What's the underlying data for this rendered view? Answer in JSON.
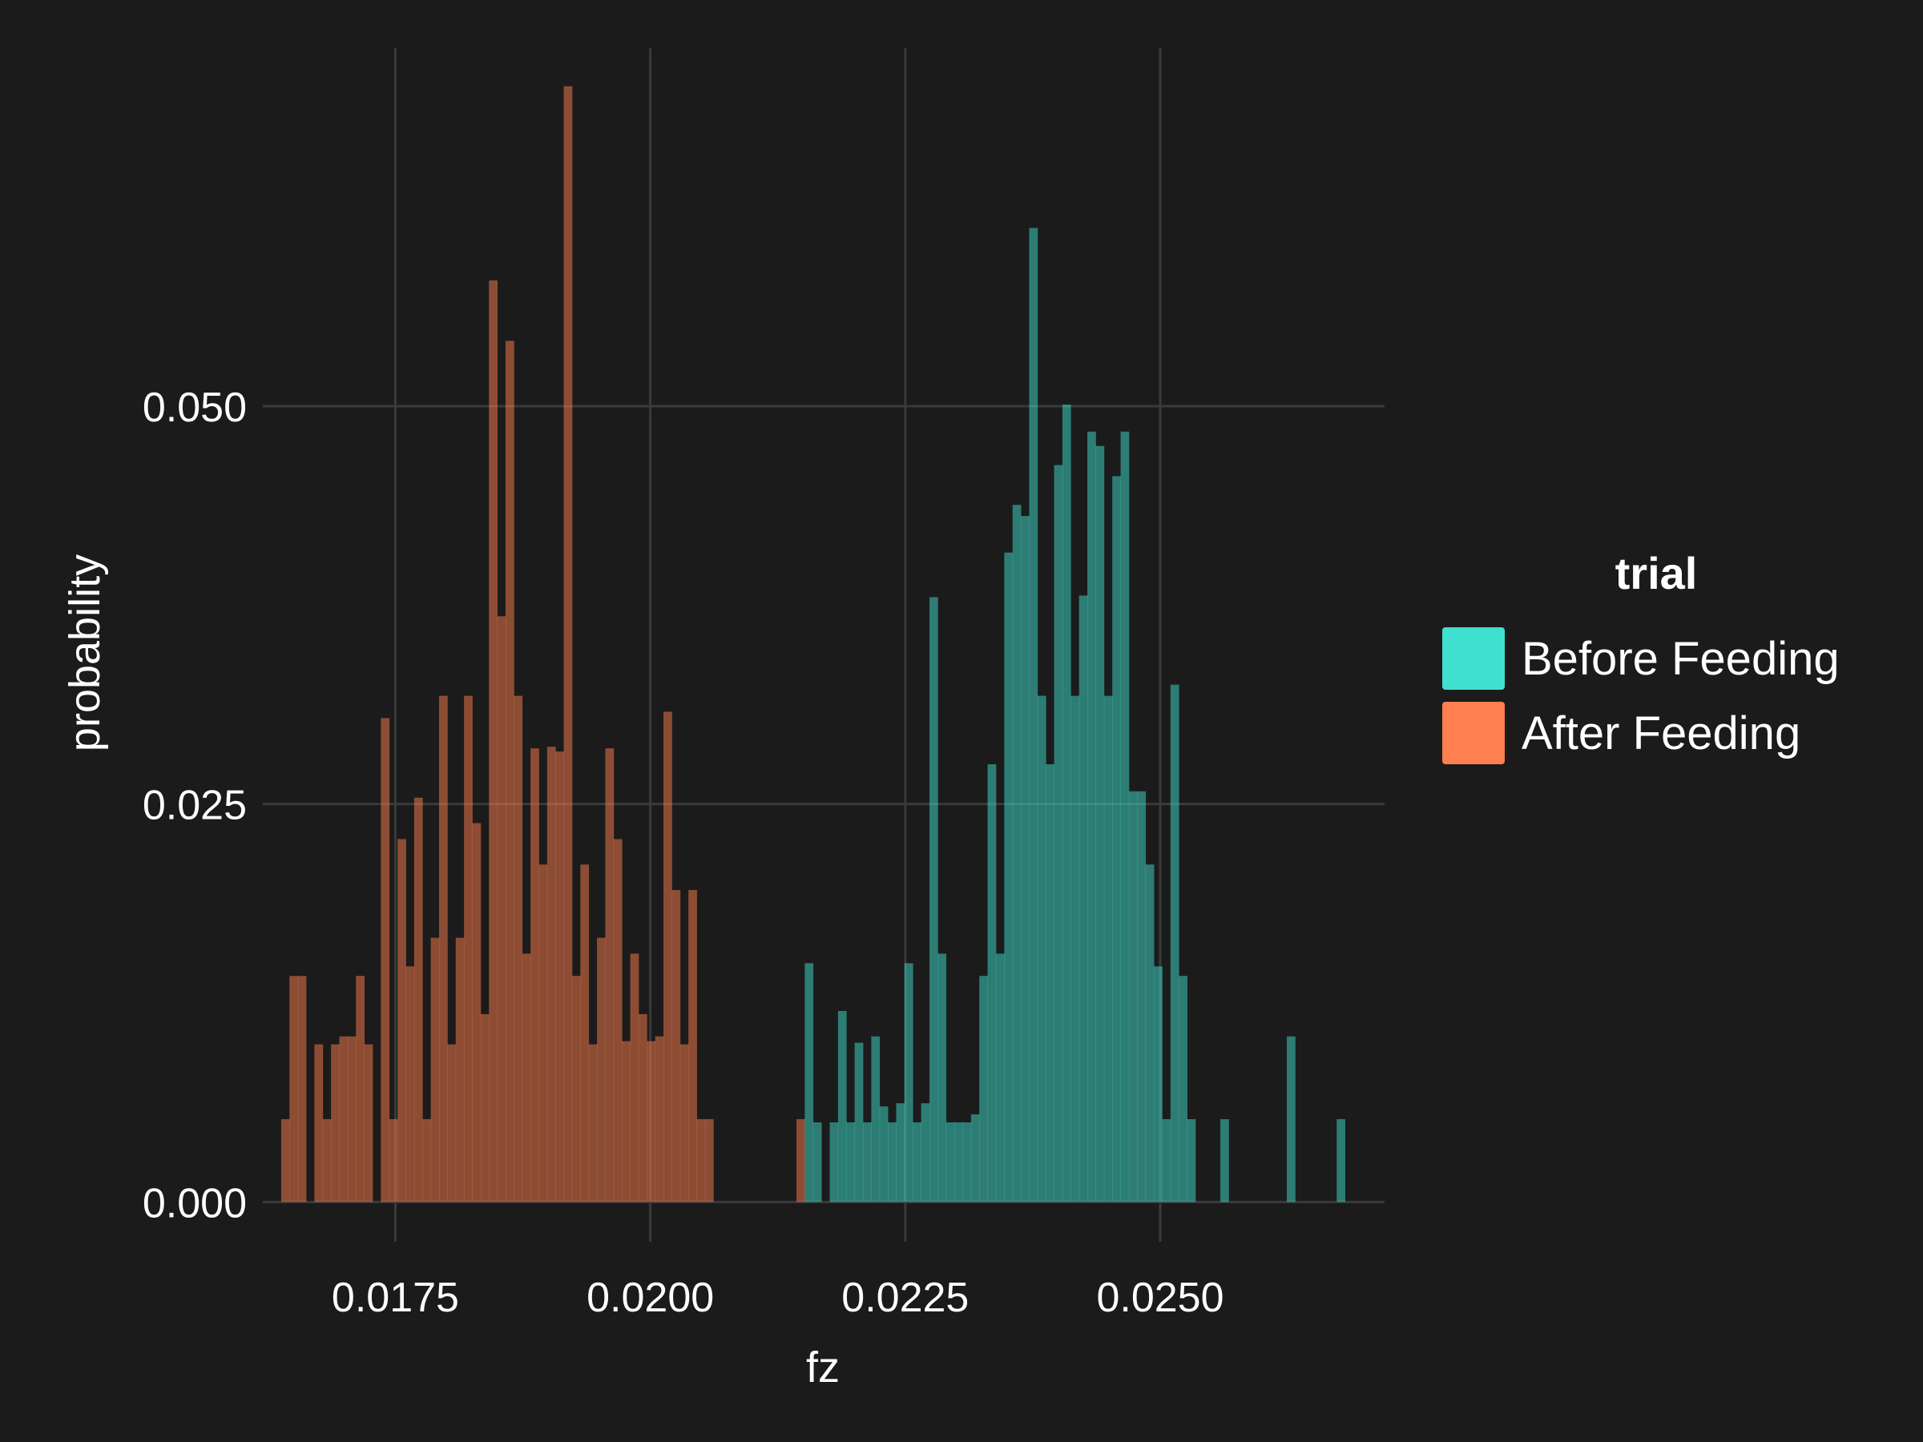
{
  "chart_data": {
    "type": "histogram",
    "xlabel": "fz",
    "ylabel": "probability",
    "xlim": [
      0.0162,
      0.0272
    ],
    "ylim": [
      -0.0025,
      0.0725
    ],
    "x_ticks": [
      {
        "value": 0.0175,
        "label": "0.0175"
      },
      {
        "value": 0.02,
        "label": "0.0200"
      },
      {
        "value": 0.0225,
        "label": "0.0225"
      },
      {
        "value": 0.025,
        "label": "0.0250"
      }
    ],
    "y_ticks": [
      {
        "value": 0.0,
        "label": "0.000"
      },
      {
        "value": 0.025,
        "label": "0.025"
      },
      {
        "value": 0.05,
        "label": "0.050"
      }
    ],
    "grid": true,
    "bin_start": 0.01638,
    "bin_width": 8.15e-05,
    "legend": {
      "title": "trial",
      "placement": "right"
    },
    "series": [
      {
        "name": "Before Feeding",
        "color": "#40E0D0",
        "fill_opacity": 0.5,
        "values": [
          0,
          0,
          0,
          0,
          0,
          0,
          0,
          0,
          0,
          0,
          0,
          0,
          0,
          0,
          0,
          0,
          0,
          0,
          0,
          0,
          0,
          0,
          0,
          0,
          0,
          0,
          0,
          0,
          0,
          0,
          0,
          0,
          0,
          0,
          0,
          0,
          0,
          0,
          0,
          0,
          0,
          0,
          0,
          0,
          0,
          0,
          0,
          0,
          0,
          0,
          0,
          0,
          0,
          0,
          0,
          0,
          0,
          0,
          0,
          0,
          0,
          0,
          0,
          0.015,
          0.005,
          0.0,
          0.005,
          0.012,
          0.005,
          0.01,
          0.005,
          0.0104,
          0.006,
          0.005,
          0.0062,
          0.015,
          0.005,
          0.0062,
          0.038,
          0.0156,
          0.005,
          0.005,
          0.005,
          0.0055,
          0.0142,
          0.0275,
          0.0156,
          0.0408,
          0.0438,
          0.0431,
          0.0612,
          0.0318,
          0.0275,
          0.0463,
          0.0501,
          0.0318,
          0.0381,
          0.0484,
          0.0475,
          0.0318,
          0.0456,
          0.0484,
          0.0258,
          0.0258,
          0.0212,
          0.0148,
          0.0052,
          0.0325,
          0.0142,
          0.0052,
          0,
          0,
          0,
          0.0052,
          0,
          0,
          0,
          0,
          0,
          0,
          0,
          0.0104,
          0,
          0,
          0,
          0,
          0,
          0.0052
        ]
      },
      {
        "name": "After Feeding",
        "color": "#FF7F50",
        "fill_opacity": 0.5,
        "values": [
          0.0052,
          0.0142,
          0.0142,
          0,
          0.0099,
          0.0052,
          0.0099,
          0.0104,
          0.0104,
          0.0142,
          0.0099,
          0,
          0.0304,
          0.0052,
          0.0228,
          0.0148,
          0.0254,
          0.0052,
          0.0166,
          0.0318,
          0.0099,
          0.0166,
          0.0318,
          0.0238,
          0.0118,
          0.0579,
          0.0368,
          0.0541,
          0.0318,
          0.0156,
          0.0285,
          0.0212,
          0.0286,
          0.0283,
          0.0701,
          0.0142,
          0.0212,
          0.0099,
          0.0166,
          0.0285,
          0.0228,
          0.0101,
          0.0156,
          0.0118,
          0.0101,
          0.0104,
          0.0308,
          0.0196,
          0.0099,
          0.0196,
          0.0052,
          0.0052,
          0,
          0,
          0,
          0,
          0,
          0,
          0,
          0,
          0,
          0,
          0.0052,
          0,
          0,
          0,
          0,
          0,
          0,
          0,
          0,
          0,
          0,
          0,
          0,
          0,
          0,
          0,
          0,
          0,
          0,
          0,
          0,
          0,
          0,
          0,
          0,
          0,
          0,
          0,
          0,
          0,
          0,
          0,
          0,
          0,
          0,
          0,
          0,
          0,
          0,
          0,
          0,
          0,
          0,
          0,
          0,
          0,
          0,
          0,
          0,
          0,
          0,
          0,
          0,
          0,
          0,
          0,
          0,
          0,
          0,
          0,
          0,
          0,
          0,
          0,
          0,
          0,
          0,
          0,
          0,
          0,
          0,
          0,
          0
        ]
      }
    ]
  }
}
